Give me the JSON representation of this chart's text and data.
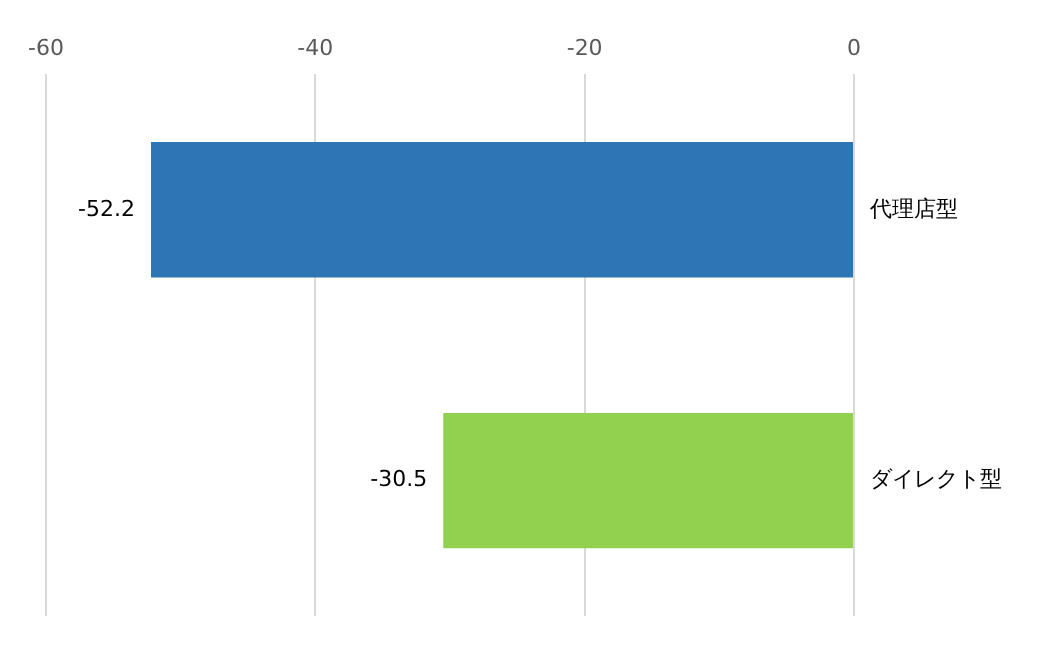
{
  "chart_data": {
    "type": "bar",
    "orientation": "horizontal",
    "categories": [
      "代理店型",
      "ダイレクト型"
    ],
    "values": [
      -52.2,
      -30.5
    ],
    "colors": [
      "#2e75b6",
      "#92d050"
    ],
    "xlim": [
      -60,
      0
    ],
    "xticks": [
      -60,
      -40,
      -20,
      0
    ],
    "grid": "x",
    "legend": false,
    "data_labels": true
  }
}
